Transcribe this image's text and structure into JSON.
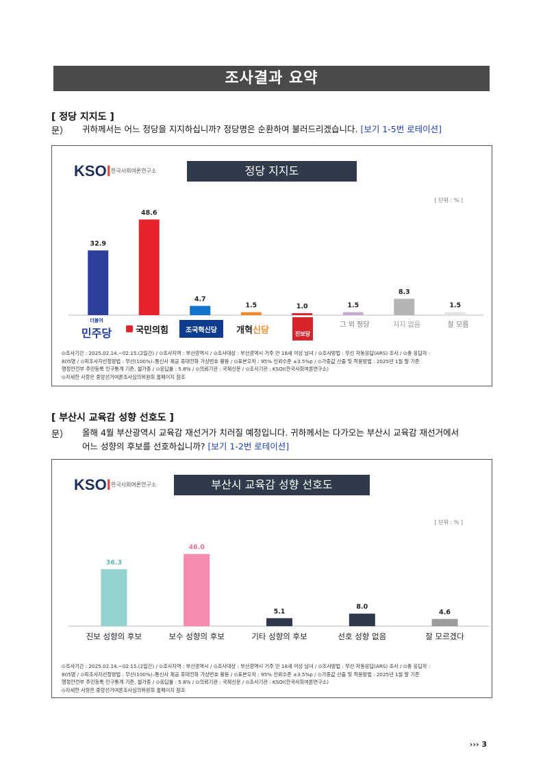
{
  "page_title": "조사결과 요약",
  "section1": {
    "heading": "[ 정당 지지도 ]",
    "q_label": "문）",
    "question": "귀하께서는 어느 정당을 지지하십니까? 정당명은 순환하여 불러드리겠습니다.",
    "rotation": "[보기 1-5번 로테이션]",
    "logo_text": "KSOI",
    "logo_sub": "한국사회여론연구소",
    "chart_title": "정당 지지도",
    "unit": "[ 단위 : % ]",
    "chart_data": {
      "type": "bar",
      "title": "정당 지지도",
      "categories": [
        "더불어민주당",
        "국민의힘",
        "조국혁신당",
        "개혁신당",
        "진보당",
        "그 외 정당",
        "지지 없음",
        "잘 모름"
      ],
      "values": [
        32.9,
        48.6,
        4.7,
        1.5,
        1.0,
        1.5,
        8.3,
        1.5
      ],
      "value_labels": [
        "32.9",
        "48.6",
        "4.7",
        "1.5",
        "1.0",
        "1.5",
        "8.3",
        "1.5"
      ],
      "colors": [
        "#2e3f9a",
        "#e8232d",
        "#1273c9",
        "#f08a2a",
        "#d8232a",
        "#c7a9d6",
        "#b4b4b4",
        "#e3e3e3"
      ],
      "ylim": [
        0,
        55
      ]
    },
    "party_labels": {
      "dem_small": "더불어",
      "dem": "민주당",
      "ppp": "국민의힘",
      "jokuk": "조국혁신당",
      "reform_a": "개혁",
      "reform_b": "신당",
      "jinbo": "진보당",
      "other": "그 외 정당",
      "none": "지지 없음",
      "dk": "잘 모름"
    },
    "notes": {
      "line1": "⊙조사기간 : 2025.02.14.~02.15.(2일간)  / ⊙조사지역 : 부산광역시 / ⊙조사대상 : 부산광역시 거주 만 18세 이상 남녀 / ⊙조사방법 : 무선 자동응답(ARS) 조사 / ⊙총 응답자 :",
      "line2": "805명 / ⊙피조사자선정방법 : 무선(100%)–통신사 제공 휴대전화 가상번호 활용 / ⊙표본오차 : 95% 신뢰수준 ±3.5%p / ⊙가중값 산출 및 적용방법 : 2025년 1월 말 기준",
      "line3": "행정안전부 주민등록 인구통계 기준, 셀가중 / ⊙응답률 : 5.8% / ⊙의뢰기관 : 국제신문 / ⊙조사기관 : KSOI(한국사회여론연구소)",
      "line4": "⊙자세한 사항은 중앙선거여론조사심의위원회 홈페이지 참조"
    }
  },
  "section2": {
    "heading": "[ 부산시 교육감 성향 선호도 ]",
    "q_label": "문）",
    "question_line1": "올해 4월 부산광역시 교육감 재선거가 치러질 예정입니다. 귀하께서는 다가오는 부산시 교육감 재선거에서",
    "question_line2": "어느 성향의 후보를 선호하십니까?",
    "rotation": "[보기 1-2번 로테이션]",
    "logo_text": "KSOI",
    "logo_sub": "한국사회여론연구소",
    "chart_title": "부산시 교육감 성향 선호도",
    "unit": "[ 단위 : % ]",
    "chart_data": {
      "type": "bar",
      "title": "부산시 교육감 성향 선호도",
      "categories": [
        "진보 성향의 후보",
        "보수 성향의 후보",
        "기타 성향의 후보",
        "선호 성향 없음",
        "잘 모르겠다"
      ],
      "values": [
        36.3,
        46.0,
        5.1,
        8.0,
        4.6
      ],
      "value_labels": [
        "36.3",
        "46.0",
        "5.1",
        "8.0",
        "4.6"
      ],
      "colors": [
        "#94d3cf",
        "#f28cb1",
        "#2f3b4b",
        "#2f3b4b",
        "#9b9b9b"
      ],
      "label_colors": [
        "#6bb8b3",
        "#e0739a",
        "#222222",
        "#222222",
        "#222222"
      ],
      "ylim": [
        0,
        55
      ]
    },
    "notes": {
      "line1": "⊙조사기간 : 2025.02.14.~02.15.(2일간)  / ⊙조사지역 : 부산광역시 / ⊙조사대상 : 부산광역시 거주 만 18세 이상 남녀 / ⊙조사방법 : 무선 자동응답(ARS) 조사 / ⊙총 응답자 :",
      "line2": "805명 / ⊙피조사자선정방법 : 무선(100%)–통신사 제공 휴대전화 가상번호 활용 / ⊙표본오차 : 95% 신뢰수준 ±3.5%p / ⊙가중값 산출 및 적용방법 : 2025년 1월 말 기준",
      "line3": "행정안전부 주민등록 인구통계 기준, 셀가중 / ⊙응답률 : 5.8% / ⊙의뢰기관 : 국제신문 / ⊙조사기관 : KSOI(한국사회여론연구소)",
      "line4": "⊙자세한 사항은 중앙선거여론조사심의위원회 홈페이지 참조"
    }
  },
  "footer": {
    "page_marker": "››› 3"
  }
}
